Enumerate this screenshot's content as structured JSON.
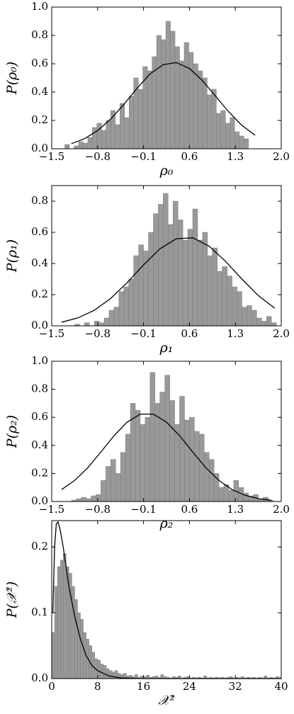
{
  "chart_data": [
    {
      "type": "histogram",
      "xlabel": "ρ₀",
      "ylabel": "P(ρ₀)",
      "color": "#999999",
      "bins": [
        -1.3,
        -1.23,
        -1.16,
        -1.09,
        -1.02,
        -0.95,
        -0.88,
        -0.81,
        -0.74,
        -0.67,
        -0.6,
        -0.53,
        -0.46,
        -0.39,
        -0.32,
        -0.25,
        -0.18,
        -0.11,
        -0.04,
        0.03,
        0.1,
        0.17,
        0.24,
        0.31,
        0.38,
        0.45,
        0.52,
        0.59,
        0.66,
        0.73,
        0.8,
        0.87,
        0.94,
        1.01,
        1.08,
        1.15,
        1.22,
        1.29,
        1.36,
        1.43,
        1.5
      ],
      "values": [
        0.03,
        0.0,
        0.02,
        0.05,
        0.04,
        0.08,
        0.15,
        0.18,
        0.13,
        0.2,
        0.27,
        0.17,
        0.32,
        0.22,
        0.37,
        0.5,
        0.42,
        0.58,
        0.55,
        0.65,
        0.8,
        0.77,
        0.9,
        0.83,
        0.72,
        0.62,
        0.75,
        0.68,
        0.6,
        0.55,
        0.5,
        0.38,
        0.42,
        0.25,
        0.27,
        0.18,
        0.22,
        0.12,
        0.09,
        0.07
      ],
      "fit": {
        "x": [
          -1.2,
          -1.0,
          -0.8,
          -0.6,
          -0.4,
          -0.2,
          0.0,
          0.2,
          0.4,
          0.6,
          0.8,
          1.0,
          1.2,
          1.4,
          1.6
        ],
        "values": [
          0.036,
          0.071,
          0.128,
          0.21,
          0.313,
          0.426,
          0.528,
          0.594,
          0.608,
          0.567,
          0.48,
          0.37,
          0.26,
          0.165,
          0.096
        ]
      },
      "xlim": [
        -1.5,
        2.0
      ],
      "xticks": [
        {
          "value": -1.5,
          "label": "−1.5"
        },
        {
          "value": -0.8,
          "label": "−0.8"
        },
        {
          "value": -0.1,
          "label": "−0.1"
        },
        0.6,
        1.3,
        {
          "value": 2.0,
          "label": "2.0"
        }
      ],
      "ylim": [
        0,
        1.0
      ],
      "yticks": [
        {
          "value": 0,
          "label": "0.0"
        },
        0.2,
        0.4,
        0.6,
        0.8,
        {
          "value": 1.0,
          "label": "1.0"
        }
      ]
    },
    {
      "type": "histogram",
      "xlabel": "ρ₁",
      "ylabel": "P(ρ₁)",
      "color": "#999999",
      "bins": [
        -1.15,
        -1.075,
        -1.0,
        -0.925,
        -0.85,
        -0.775,
        -0.7,
        -0.625,
        -0.55,
        -0.475,
        -0.4,
        -0.325,
        -0.25,
        -0.175,
        -0.1,
        -0.025,
        0.05,
        0.125,
        0.2,
        0.275,
        0.35,
        0.425,
        0.5,
        0.575,
        0.65,
        0.725,
        0.8,
        0.875,
        0.95,
        1.025,
        1.1,
        1.175,
        1.25,
        1.325,
        1.4,
        1.475,
        1.55,
        1.625,
        1.7,
        1.775,
        1.85,
        1.925
      ],
      "values": [
        0.01,
        0.0,
        0.02,
        0.0,
        0.03,
        0.02,
        0.05,
        0.1,
        0.12,
        0.22,
        0.25,
        0.3,
        0.45,
        0.52,
        0.48,
        0.6,
        0.72,
        0.78,
        0.85,
        0.65,
        0.8,
        0.68,
        0.55,
        0.62,
        0.75,
        0.55,
        0.6,
        0.45,
        0.5,
        0.35,
        0.38,
        0.32,
        0.25,
        0.22,
        0.12,
        0.13,
        0.1,
        0.05,
        0.03,
        0.06,
        0.02
      ],
      "fit": {
        "x": [
          -1.35,
          -1.1,
          -0.85,
          -0.6,
          -0.35,
          -0.1,
          0.15,
          0.4,
          0.65,
          0.9,
          1.15,
          1.4,
          1.65,
          1.9
        ],
        "values": [
          0.023,
          0.051,
          0.1,
          0.176,
          0.277,
          0.391,
          0.494,
          0.559,
          0.565,
          0.511,
          0.414,
          0.3,
          0.194,
          0.113
        ]
      },
      "xlim": [
        -1.5,
        2.0
      ],
      "xticks": [
        {
          "value": -1.5,
          "label": "−1.5"
        },
        {
          "value": -0.8,
          "label": "−0.8"
        },
        {
          "value": -0.1,
          "label": "−0.1"
        },
        0.6,
        1.3,
        {
          "value": 2.0,
          "label": "2.0"
        }
      ],
      "ylim": [
        0,
        0.9
      ],
      "yticks": [
        {
          "value": 0,
          "label": "0.0"
        },
        0.2,
        0.4,
        0.6,
        0.8
      ]
    },
    {
      "type": "histogram",
      "xlabel": "ρ₂",
      "ylabel": "P(ρ₂)",
      "color": "#999999",
      "bins": [
        -1.2,
        -1.125,
        -1.05,
        -0.975,
        -0.9,
        -0.825,
        -0.75,
        -0.675,
        -0.6,
        -0.525,
        -0.45,
        -0.375,
        -0.3,
        -0.225,
        -0.15,
        -0.075,
        0.0,
        0.075,
        0.15,
        0.225,
        0.3,
        0.375,
        0.45,
        0.525,
        0.6,
        0.675,
        0.75,
        0.825,
        0.9,
        0.975,
        1.05,
        1.125,
        1.2,
        1.275,
        1.35,
        1.425,
        1.5,
        1.575,
        1.65,
        1.725,
        1.8,
        1.875
      ],
      "values": [
        0.01,
        0.02,
        0.03,
        0.02,
        0.04,
        0.05,
        0.15,
        0.25,
        0.3,
        0.2,
        0.35,
        0.48,
        0.7,
        0.65,
        0.55,
        0.6,
        0.92,
        0.7,
        0.78,
        0.9,
        0.72,
        0.55,
        0.75,
        0.58,
        0.6,
        0.5,
        0.48,
        0.35,
        0.3,
        0.2,
        0.1,
        0.12,
        0.08,
        0.15,
        0.1,
        0.06,
        0.04,
        0.05,
        0.02,
        0.03,
        0.01
      ],
      "fit": {
        "x": [
          -1.35,
          -1.15,
          -0.95,
          -0.75,
          -0.55,
          -0.35,
          -0.15,
          0.05,
          0.25,
          0.45,
          0.65,
          0.85,
          1.05,
          1.25,
          1.45,
          1.65,
          1.85
        ],
        "values": [
          0.085,
          0.15,
          0.241,
          0.353,
          0.469,
          0.566,
          0.623,
          0.623,
          0.566,
          0.469,
          0.353,
          0.241,
          0.15,
          0.085,
          0.044,
          0.021,
          0.009
        ]
      },
      "xlim": [
        -1.5,
        2.0
      ],
      "xticks": [
        {
          "value": -1.5,
          "label": "−1.5"
        },
        {
          "value": -0.8,
          "label": "−0.8"
        },
        {
          "value": -0.1,
          "label": "−0.1"
        },
        0.6,
        1.3,
        {
          "value": 2.0,
          "label": "2.0"
        }
      ],
      "ylim": [
        0,
        1.0
      ],
      "yticks": [
        {
          "value": 0,
          "label": "0.0"
        },
        0.2,
        0.4,
        0.6,
        0.8,
        {
          "value": 1.0,
          "label": "1.0"
        }
      ]
    },
    {
      "type": "histogram",
      "xlabel": "𝒳²",
      "ylabel": "P(𝒳²)",
      "color": "#999999",
      "bins": [
        0,
        0.5,
        1,
        1.5,
        2,
        2.5,
        3,
        3.5,
        4,
        4.5,
        5,
        5.5,
        6,
        6.5,
        7,
        7.5,
        8,
        8.5,
        9,
        9.5,
        10,
        10.5,
        11,
        11.5,
        12,
        12.5,
        13,
        13.5,
        14,
        14.5,
        15,
        15.5,
        16,
        16.5,
        17,
        17.5,
        18,
        18.5,
        19,
        19.5,
        20,
        20.5,
        21,
        21.5,
        22,
        22.5,
        23,
        23.5,
        24,
        24.5,
        25,
        25.5,
        26,
        26.5,
        27,
        27.5,
        28,
        28.5,
        29,
        29.5,
        30,
        30.5,
        31,
        31.5,
        32,
        32.5,
        33,
        33.5,
        34,
        34.5,
        35,
        35.5,
        36,
        36.5,
        37,
        37.5,
        38,
        38.5,
        39,
        39.5,
        40
      ],
      "values": [
        0.07,
        0.14,
        0.17,
        0.18,
        0.19,
        0.17,
        0.16,
        0.14,
        0.12,
        0.1,
        0.09,
        0.07,
        0.06,
        0.05,
        0.04,
        0.03,
        0.028,
        0.022,
        0.02,
        0.015,
        0.012,
        0.01,
        0.012,
        0.008,
        0.006,
        0.008,
        0.004,
        0.005,
        0.003,
        0.006,
        0.002,
        0.004,
        0.003,
        0.005,
        0.002,
        0.003,
        0.004,
        0.002,
        0.006,
        0.003,
        0.002,
        0.001,
        0.003,
        0.002,
        0.004,
        0.001,
        0.002,
        0.003,
        0.001,
        0.002,
        0.001,
        0.002,
        0.001,
        0.004,
        0.001,
        0.002,
        0.001,
        0.002,
        0.001,
        0.002,
        0.001,
        0.002,
        0.003,
        0.001,
        0.002,
        0.001,
        0.003,
        0.001,
        0.002,
        0.001,
        0.002,
        0.001,
        0.002,
        0.001,
        0.004,
        0.001,
        0.002,
        0.001,
        0.003,
        0.002
      ],
      "fit": {
        "x": [
          0.2,
          0.5,
          0.8,
          1.1,
          1.5,
          2,
          2.5,
          3,
          4,
          5,
          6,
          7,
          8,
          10,
          12,
          16,
          20,
          25,
          30,
          40
        ],
        "values": [
          0.1,
          0.2,
          0.235,
          0.238,
          0.225,
          0.2,
          0.17,
          0.14,
          0.095,
          0.06,
          0.035,
          0.02,
          0.012,
          0.004,
          0.001,
          0,
          0,
          0,
          0,
          0
        ]
      },
      "xlim": [
        0,
        40
      ],
      "xticks": [
        0,
        8,
        16,
        24,
        32,
        40
      ],
      "ylim": [
        0,
        0.24
      ],
      "yticks": [
        {
          "value": 0,
          "label": "0.0"
        },
        0.1,
        0.2
      ]
    }
  ]
}
